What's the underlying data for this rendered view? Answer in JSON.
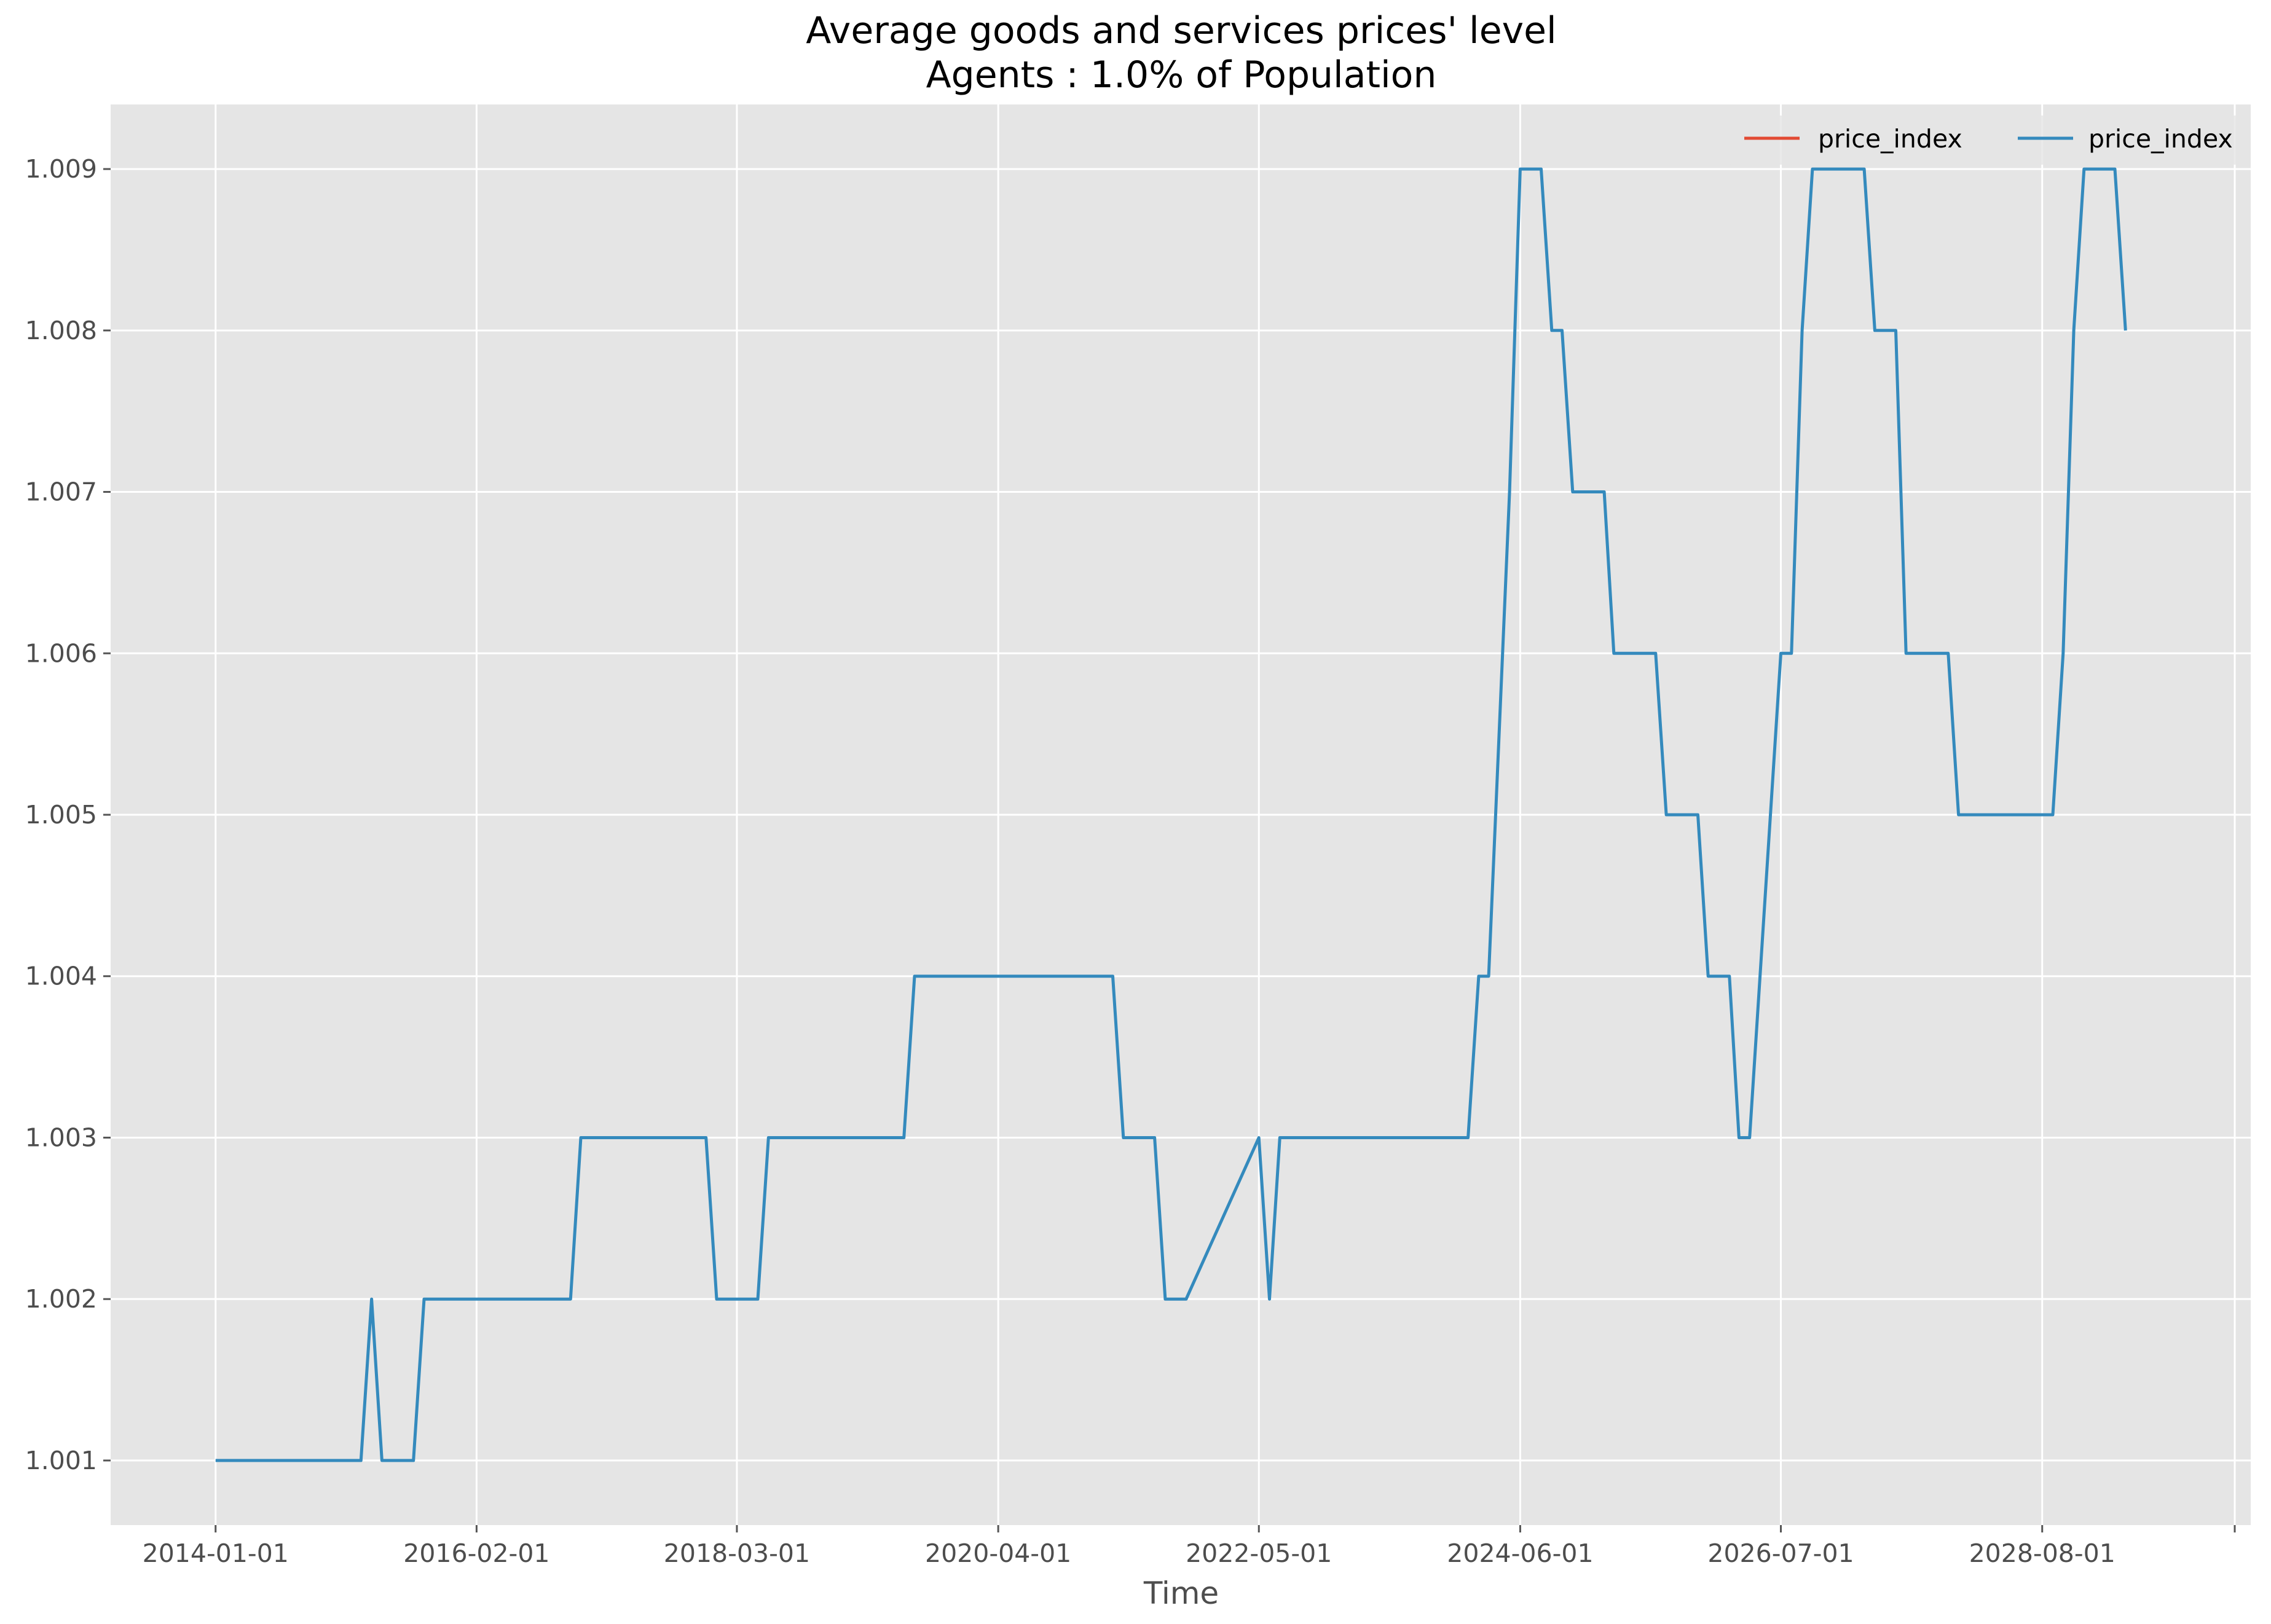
{
  "chart_data": {
    "type": "line",
    "title": "Average goods and services prices' level",
    "subtitle": "Agents : 1.0% of Population",
    "xlabel": "Time",
    "ylabel": "",
    "ylim": [
      1.0006,
      1.0094
    ],
    "xlim": [
      "2013-03-01",
      "2030-04-01"
    ],
    "x_ticks": [
      "2014-01-01",
      "2016-02-01",
      "2018-03-01",
      "2020-04-01",
      "2022-05-01",
      "2024-06-01",
      "2026-07-01",
      "2028-08-01"
    ],
    "y_ticks": [
      1.001,
      1.002,
      1.003,
      1.004,
      1.005,
      1.006,
      1.007,
      1.008,
      1.009
    ],
    "grid": true,
    "legend_position": "top-right",
    "legend": [
      "price_index",
      "price_index"
    ],
    "series": [
      {
        "name": "price_index",
        "color": "#e24a33",
        "x": [
          "2014-01-01",
          "2029-04-01"
        ],
        "y": [
          1.001,
          1.008
        ]
      },
      {
        "name": "price_index",
        "color": "#348abd",
        "x": [
          "2014-01-01",
          "2015-03-01",
          "2015-04-01",
          "2015-05-01",
          "2015-08-01",
          "2015-09-01",
          "2016-11-01",
          "2016-12-01",
          "2017-12-01",
          "2018-01-01",
          "2018-05-01",
          "2018-06-01",
          "2019-07-01",
          "2019-08-01",
          "2021-03-01",
          "2021-04-01",
          "2021-07-01",
          "2021-08-01",
          "2021-10-01",
          "2022-05-01",
          "2022-06-01",
          "2022-07-01",
          "2024-01-01",
          "2024-02-01",
          "2024-03-01",
          "2024-05-01",
          "2024-06-01",
          "2024-08-01",
          "2024-09-01",
          "2024-10-01",
          "2024-11-01",
          "2025-02-01",
          "2025-03-01",
          "2025-07-01",
          "2025-08-01",
          "2025-11-01",
          "2025-12-01",
          "2026-02-01",
          "2026-03-01",
          "2026-04-01",
          "2026-07-01",
          "2026-08-01",
          "2026-09-01",
          "2026-10-01",
          "2027-03-01",
          "2027-04-01",
          "2027-06-01",
          "2027-07-01",
          "2027-08-01",
          "2027-11-01",
          "2027-12-01",
          "2028-09-01",
          "2028-10-01",
          "2028-11-01",
          "2028-12-01",
          "2029-03-01",
          "2029-04-01"
        ],
        "y": [
          1.001,
          1.001,
          1.002,
          1.001,
          1.001,
          1.002,
          1.002,
          1.003,
          1.003,
          1.002,
          1.002,
          1.003,
          1.003,
          1.004,
          1.004,
          1.003,
          1.003,
          1.002,
          1.002,
          1.003,
          1.002,
          1.003,
          1.003,
          1.004,
          1.004,
          1.007,
          1.009,
          1.009,
          1.008,
          1.008,
          1.007,
          1.007,
          1.006,
          1.006,
          1.005,
          1.005,
          1.004,
          1.004,
          1.003,
          1.003,
          1.006,
          1.006,
          1.008,
          1.009,
          1.009,
          1.008,
          1.008,
          1.006,
          1.006,
          1.006,
          1.005,
          1.005,
          1.006,
          1.008,
          1.009,
          1.009,
          1.008
        ]
      }
    ]
  }
}
